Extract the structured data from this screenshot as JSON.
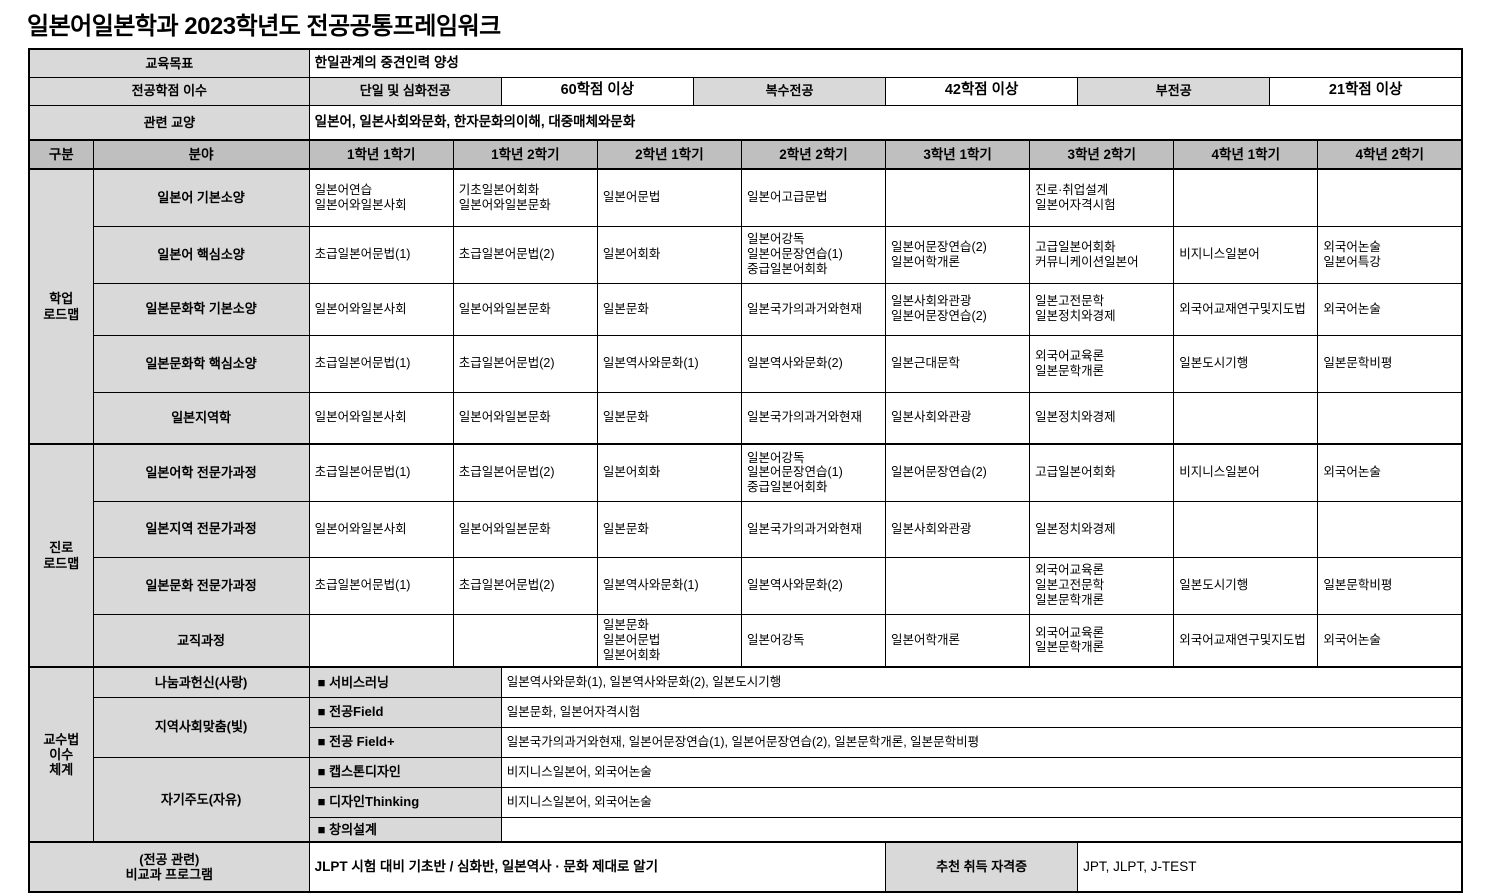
{
  "title": "일본어일본학과 2023학년도 전공공통프레임워크",
  "colors": {
    "header_bg": "#bfbfbf",
    "label_bg": "#d9d9d9",
    "border": "#000000",
    "page_bg": "#ffffff"
  },
  "info_rows": [
    {
      "label": "교육목표",
      "cells": [
        {
          "text": "한일관계의 중견인력 양성",
          "span": 24,
          "kind": "text"
        }
      ]
    },
    {
      "label": "전공학점 이수",
      "cells": [
        {
          "text": "단일 및 심화전공",
          "span": 4,
          "kind": "label"
        },
        {
          "text": "60학점 이상",
          "span": 4,
          "kind": "value"
        },
        {
          "text": "복수전공",
          "span": 4,
          "kind": "label"
        },
        {
          "text": "42학점 이상",
          "span": 4,
          "kind": "value"
        },
        {
          "text": "부전공",
          "span": 4,
          "kind": "label"
        },
        {
          "text": "21학점 이상",
          "span": 4,
          "kind": "value"
        }
      ]
    },
    {
      "label": "관련 교양",
      "cells": [
        {
          "text": "일본어, 일본사회와문화, 한자문화의이해, 대중매체와문화",
          "span": 24,
          "kind": "text"
        }
      ]
    }
  ],
  "header": {
    "col_group": "구분",
    "col_field": "분야",
    "semesters": [
      "1학년 1학기",
      "1학년 2학기",
      "2학년 1학기",
      "2학년 2학기",
      "3학년 1학기",
      "3학년 2학기",
      "4학년 1학기",
      "4학년 2학기"
    ]
  },
  "roadmap_sections": [
    {
      "group_lines": [
        "학업",
        "로드맵"
      ],
      "rows": [
        {
          "field": "일본어 기본소양",
          "cells": [
            [
              "일본어연습",
              "일본어와일본사회"
            ],
            [
              "기초일본어회화",
              "일본어와일본문화"
            ],
            [
              "일본어문법"
            ],
            [
              "일본어고급문법"
            ],
            [],
            [
              "진로·취업설계",
              "일본어자격시험"
            ],
            [],
            []
          ]
        },
        {
          "field": "일본어 핵심소양",
          "cells": [
            [
              "초급일본어문법(1)"
            ],
            [
              "초급일본어문법(2)"
            ],
            [
              "일본어회화"
            ],
            [
              "일본어강독",
              "일본어문장연습(1)",
              "중급일본어회화"
            ],
            [
              "일본어문장연습(2)",
              "일본어학개론"
            ],
            [
              "고급일본어회화",
              "커뮤니케이션일본어"
            ],
            [
              "비지니스일본어"
            ],
            [
              "외국어논술",
              "일본어특강"
            ]
          ]
        },
        {
          "field": "일본문화학 기본소양",
          "cells": [
            [
              "일본어와일본사회"
            ],
            [
              "일본어와일본문화"
            ],
            [
              "일본문화"
            ],
            [
              "일본국가의과거와현재"
            ],
            [
              "일본사회와관광",
              "일본어문장연습(2)"
            ],
            [
              "일본고전문학",
              "일본정치와경제"
            ],
            [
              "외국어교재연구및지도법"
            ],
            [
              "외국어논술"
            ]
          ]
        },
        {
          "field": "일본문화학 핵심소양",
          "cells": [
            [
              "초급일본어문법(1)"
            ],
            [
              "초급일본어문법(2)"
            ],
            [
              "일본역사와문화(1)"
            ],
            [
              "일본역사와문화(2)"
            ],
            [
              "일본근대문학"
            ],
            [
              "외국어교육론",
              "일본문학개론"
            ],
            [
              "일본도시기행"
            ],
            [
              "일본문학비평"
            ]
          ]
        },
        {
          "field": "일본지역학",
          "cells": [
            [
              "일본어와일본사회"
            ],
            [
              "일본어와일본문화"
            ],
            [
              "일본문화"
            ],
            [
              "일본국가의과거와현재"
            ],
            [
              "일본사회와관광"
            ],
            [
              "일본정치와경제"
            ],
            [],
            []
          ]
        }
      ]
    },
    {
      "group_lines": [
        "진로",
        "로드맵"
      ],
      "rows": [
        {
          "field": "일본어학 전문가과정",
          "cells": [
            [
              "초급일본어문법(1)"
            ],
            [
              "초급일본어문법(2)"
            ],
            [
              "일본어회화"
            ],
            [
              "일본어강독",
              "일본어문장연습(1)",
              "중급일본어회화"
            ],
            [
              "일본어문장연습(2)"
            ],
            [
              "고급일본어회화"
            ],
            [
              "비지니스일본어"
            ],
            [
              "외국어논술"
            ]
          ]
        },
        {
          "field": "일본지역 전문가과정",
          "cells": [
            [
              "일본어와일본사회"
            ],
            [
              "일본어와일본문화"
            ],
            [
              "일본문화"
            ],
            [
              "일본국가의과거와현재"
            ],
            [
              "일본사회와관광"
            ],
            [
              "일본정치와경제"
            ],
            [],
            []
          ]
        },
        {
          "field": "일본문화 전문가과정",
          "cells": [
            [
              "초급일본어문법(1)"
            ],
            [
              "초급일본어문법(2)"
            ],
            [
              "일본역사와문화(1)"
            ],
            [
              "일본역사와문화(2)"
            ],
            [],
            [
              "외국어교육론",
              "일본고전문학",
              "일본문학개론"
            ],
            [
              "일본도시기행"
            ],
            [
              "일본문학비평"
            ]
          ]
        },
        {
          "field": "교직과정",
          "cells": [
            [],
            [],
            [
              "일본문화",
              "일본어문법",
              "일본어회화"
            ],
            [
              "일본어강독"
            ],
            [
              "일본어학개론"
            ],
            [
              "외국어교육론",
              "일본문학개론"
            ],
            [
              "외국어교재연구및지도법"
            ],
            [
              "외국어논술"
            ]
          ]
        }
      ]
    }
  ],
  "teaching_section": {
    "group_lines": [
      "교수법",
      "이수",
      "체계"
    ],
    "subgroups": [
      {
        "label": "나눔과헌신(사랑)",
        "programs": [
          {
            "tag": "■ 서비스러닝",
            "courses": "일본역사와문화(1), 일본역사와문화(2), 일본도시기행"
          }
        ]
      },
      {
        "label": "지역사회맞춤(빛)",
        "programs": [
          {
            "tag": "■ 전공Field",
            "courses": "일본문화, 일본어자격시험"
          },
          {
            "tag": "■ 전공 Field+",
            "courses": "일본국가의과거와현재, 일본어문장연습(1), 일본어문장연습(2), 일본문학개론, 일본문학비평"
          }
        ]
      },
      {
        "label": "자기주도(자유)",
        "programs": [
          {
            "tag": "■ 캡스톤디자인",
            "courses": "비지니스일본어, 외국어논술"
          },
          {
            "tag": "■ 디자인Thinking",
            "courses": "비지니스일본어, 외국어논술"
          },
          {
            "tag": "■ 창의설계",
            "courses": ""
          }
        ]
      }
    ]
  },
  "bottom_row": {
    "label_lines": [
      "(전공 관련)",
      "비교과 프로그램"
    ],
    "program": "JLPT 시험 대비 기초반 / 심화반, 일본역사 · 문화 제대로 알기",
    "cert_label": "추천 취득 자격증",
    "certs": "JPT, JLPT, J-TEST"
  }
}
